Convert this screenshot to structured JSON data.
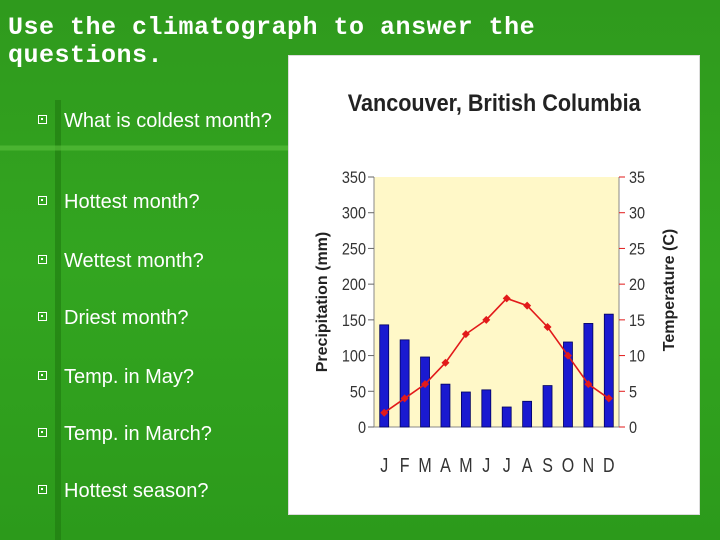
{
  "slide": {
    "title_line1": "Use the climatograph to answer the",
    "title_line2": "questions.",
    "questions": [
      "What is coldest month?",
      "Hottest month?",
      "Wettest month?",
      "Driest month?",
      "Temp. in May?",
      "Temp. in March?",
      "Hottest season?"
    ]
  },
  "colors": {
    "background": "#2f9a1d",
    "plot_area": "#fff8c8",
    "bars": "#1a1ad0",
    "temperature_line": "#e21a1a"
  },
  "chart_data": {
    "type": "bar",
    "title": "Vancouver, British Columbia",
    "categories": [
      "J",
      "F",
      "M",
      "A",
      "M",
      "J",
      "J",
      "A",
      "S",
      "O",
      "N",
      "D"
    ],
    "ylabel": "Precipitation (mm)",
    "y2label": "Temperature (C)",
    "ylim": [
      0,
      350
    ],
    "y2lim": [
      0,
      35
    ],
    "yticks": [
      "0",
      "50",
      "100",
      "150",
      "200",
      "250",
      "300",
      "350"
    ],
    "y2ticks": [
      "0",
      "5",
      "10",
      "15",
      "20",
      "25",
      "30",
      "35"
    ],
    "series": [
      {
        "type": "bar",
        "axis": "precipitation",
        "values": [
          143,
          122,
          98,
          60,
          49,
          52,
          28,
          36,
          58,
          119,
          145,
          158
        ]
      },
      {
        "type": "line",
        "axis": "temperature",
        "values": [
          2,
          4,
          6,
          9,
          13,
          15,
          18,
          17,
          14,
          10,
          6,
          4
        ]
      }
    ],
    "grid": false
  }
}
